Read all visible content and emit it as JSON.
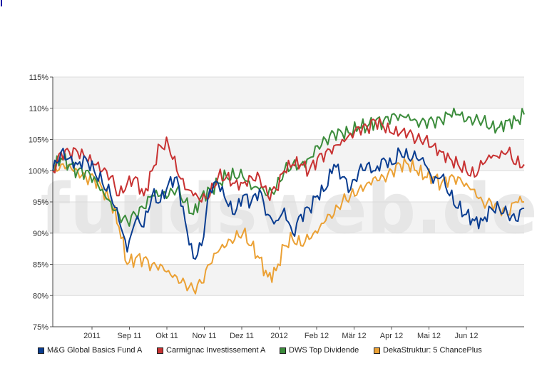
{
  "watermark": "fundsweb.de",
  "chart_data": {
    "type": "line",
    "xlabel": "",
    "ylabel": "",
    "x_tick_labels": [
      "2011",
      "Sep 11",
      "Okt 11",
      "Nov 11",
      "Dez 11",
      "2012",
      "Feb 12",
      "Mär 12",
      "Apr 12",
      "Mai 12",
      "Jun 12"
    ],
    "y_ticks": [
      75,
      80,
      85,
      90,
      95,
      100,
      105,
      110,
      115
    ],
    "y_tick_labels": [
      "75%",
      "80%",
      "85%",
      "90%",
      "95%",
      "100%",
      "105%",
      "110%",
      "115%"
    ],
    "ylim": [
      75,
      115
    ],
    "grid": "horizontal bands",
    "legend_position": "bottom",
    "series": [
      {
        "name": "M&G Global Basics Fund A",
        "color": "#0a3d91",
        "values": [
          100,
          103,
          102,
          101,
          102,
          100,
          98,
          96,
          92,
          87,
          92,
          91,
          96,
          95,
          98,
          99,
          92,
          86,
          88,
          97,
          98,
          95,
          93,
          96,
          95,
          97,
          93,
          92,
          94,
          90,
          93,
          94,
          96,
          97,
          101,
          99,
          97,
          100,
          101,
          100,
          102,
          101,
          103,
          102,
          102,
          101,
          98,
          99,
          96,
          94,
          93,
          92,
          92,
          94,
          94,
          93,
          92,
          94
        ]
      },
      {
        "name": "Carmignac Investissement A",
        "color": "#c83232",
        "values": [
          100,
          103,
          103,
          103,
          102,
          101,
          100,
          99,
          96,
          98,
          99,
          96,
          100,
          104,
          104,
          100,
          97,
          96,
          95,
          96,
          99,
          99,
          98,
          98,
          99,
          99,
          96,
          97,
          100,
          101,
          101,
          100,
          102,
          103,
          104,
          105,
          106,
          107,
          107,
          108,
          107,
          106,
          106,
          106,
          105,
          105,
          104,
          103,
          102,
          101,
          100,
          99,
          101,
          102,
          102,
          103,
          101,
          101
        ]
      },
      {
        "name": "DWS Top Dividende",
        "color": "#3b8c3b",
        "values": [
          100,
          102,
          101,
          100,
          100,
          99,
          97,
          95,
          93,
          92,
          93,
          94,
          96,
          96,
          96,
          97,
          95,
          93,
          96,
          97,
          98,
          99,
          99,
          99,
          97,
          97,
          96,
          97,
          100,
          101,
          101,
          102,
          104,
          105,
          106,
          106,
          106,
          107,
          107,
          108,
          108,
          109,
          109,
          109,
          108,
          108,
          108,
          108,
          109,
          109,
          108,
          108,
          108,
          107,
          107,
          108,
          108,
          109
        ]
      },
      {
        "name": "DekaStruktur: 5 ChancePlus",
        "color": "#eba135",
        "values": [
          100,
          101,
          101,
          100,
          99,
          99,
          97,
          95,
          91,
          85,
          86,
          86,
          85,
          85,
          84,
          83,
          82,
          81,
          82,
          85,
          87,
          88,
          89,
          90,
          88,
          86,
          83,
          84,
          88,
          89,
          88,
          89,
          90,
          92,
          93,
          95,
          96,
          97,
          98,
          99,
          99,
          100,
          101,
          101,
          100,
          99,
          99,
          98,
          99,
          99,
          98,
          97,
          95,
          95,
          94,
          93,
          95,
          95
        ]
      }
    ]
  }
}
